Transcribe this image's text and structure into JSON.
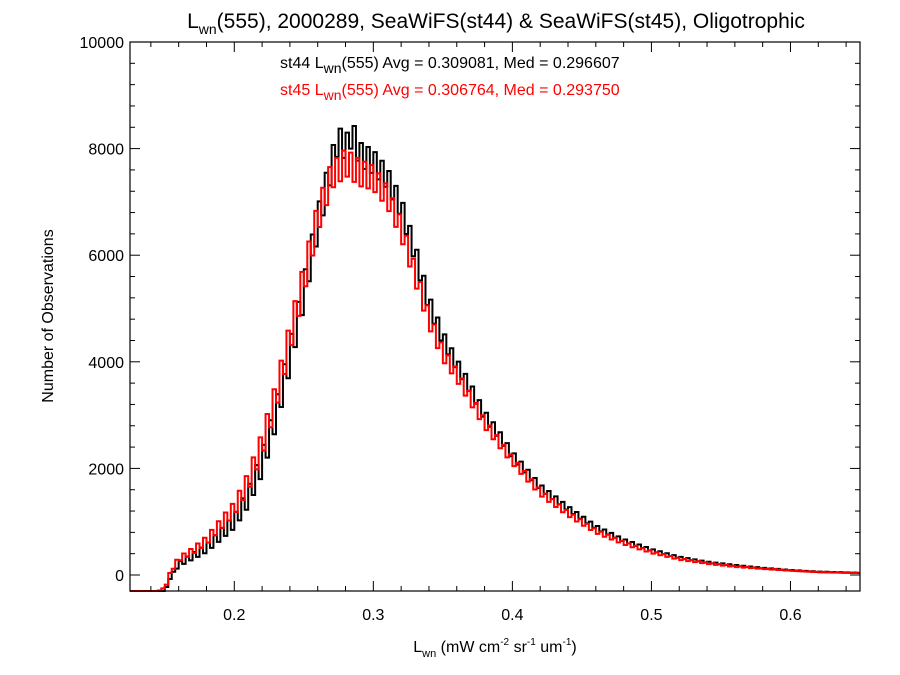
{
  "chart_data": {
    "type": "histogram-step",
    "title": {
      "L": "L",
      "L_sub": "wn",
      "rest": "(555), 2000289, SeaWiFS(st44) & SeaWiFS(st45), Oligotrophic"
    },
    "xlabel": {
      "L": "L",
      "L_sub": "wn",
      "rest_pre": " (mW cm",
      "sup1": "-2",
      "mid1": " sr",
      "sup2": "-1",
      "mid2": " um",
      "sup3": "-1",
      "end": ")"
    },
    "ylabel": "Number of Observations",
    "xlim": [
      0.125,
      0.65
    ],
    "ylim": [
      -300,
      10000
    ],
    "xticks": [
      0.2,
      0.3,
      0.4,
      0.5,
      0.6
    ],
    "xtick_labels": [
      "0.2",
      "0.3",
      "0.4",
      "0.5",
      "0.6"
    ],
    "yticks": [
      0,
      2000,
      4000,
      6000,
      8000,
      10000
    ],
    "ytick_labels": [
      "0",
      "2000",
      "4000",
      "6000",
      "8000",
      "10000"
    ],
    "stats": [
      {
        "prefix": "st44 L",
        "sub": "wn",
        "suffix": "(555) Avg = 0.309081, Med = 0.296607",
        "color": "#000000"
      },
      {
        "prefix": "st45 L",
        "sub": "wn",
        "suffix": "(555) Avg = 0.306764, Med = 0.293750",
        "color": "#ff0000"
      }
    ],
    "series": [
      {
        "color": "#000000",
        "x": [
          0.125,
          0.13,
          0.14,
          0.15,
          0.155,
          0.16,
          0.17,
          0.18,
          0.19,
          0.2,
          0.21,
          0.22,
          0.23,
          0.24,
          0.25,
          0.26,
          0.27,
          0.275,
          0.28,
          0.285,
          0.29,
          0.3,
          0.31,
          0.32,
          0.33,
          0.34,
          0.35,
          0.36,
          0.37,
          0.38,
          0.39,
          0.4,
          0.42,
          0.44,
          0.46,
          0.48,
          0.5,
          0.52,
          0.54,
          0.56,
          0.58,
          0.6,
          0.62,
          0.65
        ],
        "y": [
          -300,
          -300,
          -300,
          -300,
          0,
          200,
          350,
          500,
          750,
          1000,
          1450,
          2100,
          3000,
          4100,
          5300,
          6600,
          7700,
          8200,
          8000,
          8300,
          7900,
          7750,
          7450,
          6900,
          6050,
          5100,
          4450,
          3950,
          3500,
          3000,
          2650,
          2250,
          1650,
          1250,
          900,
          650,
          470,
          330,
          240,
          180,
          130,
          90,
          60,
          40
        ],
        "osc": [
          0,
          0,
          0,
          0,
          0,
          80,
          120,
          150,
          200,
          250,
          350,
          450,
          500,
          550,
          550,
          550,
          500,
          450,
          450,
          450,
          450,
          450,
          400,
          380,
          350,
          300,
          260,
          220,
          200,
          180,
          160,
          140,
          110,
          90,
          70,
          55,
          40,
          30,
          25,
          20,
          15,
          12,
          10,
          8
        ]
      },
      {
        "color": "#ff0000",
        "x": [
          0.125,
          0.145,
          0.15,
          0.155,
          0.16,
          0.17,
          0.18,
          0.19,
          0.2,
          0.21,
          0.22,
          0.23,
          0.24,
          0.25,
          0.26,
          0.27,
          0.275,
          0.28,
          0.285,
          0.29,
          0.3,
          0.31,
          0.32,
          0.33,
          0.34,
          0.35,
          0.36,
          0.37,
          0.38,
          0.39,
          0.4,
          0.42,
          0.44,
          0.46,
          0.48,
          0.5,
          0.52,
          0.54,
          0.56,
          0.58,
          0.6,
          0.62,
          0.65
        ],
        "y": [
          -300,
          -300,
          -250,
          100,
          300,
          450,
          650,
          950,
          1250,
          1750,
          2450,
          3350,
          4450,
          5550,
          6700,
          7500,
          7600,
          7750,
          7650,
          7550,
          7450,
          7100,
          6500,
          5650,
          4800,
          4150,
          3750,
          3300,
          2850,
          2500,
          2150,
          1550,
          1150,
          820,
          600,
          430,
          300,
          220,
          160,
          120,
          85,
          55,
          40
        ],
        "osc": [
          0,
          0,
          30,
          60,
          80,
          120,
          150,
          200,
          250,
          350,
          450,
          500,
          550,
          550,
          550,
          500,
          500,
          500,
          500,
          500,
          450,
          400,
          380,
          350,
          300,
          260,
          220,
          200,
          180,
          160,
          140,
          110,
          90,
          70,
          55,
          40,
          30,
          25,
          20,
          15,
          12,
          10,
          8
        ]
      }
    ]
  }
}
